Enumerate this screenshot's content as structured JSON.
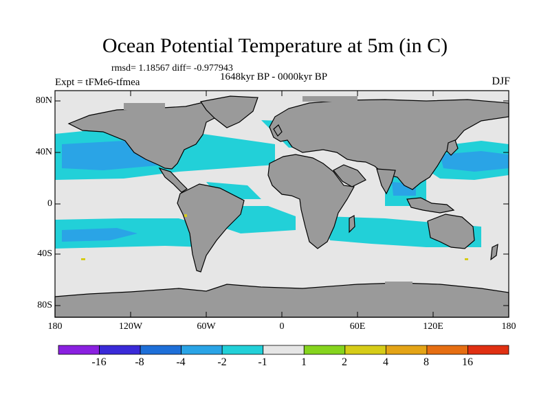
{
  "title": "Ocean Potential Temperature at 5m (in C)",
  "stats_line": "rmsd= 1.18567  diff= -0.977943",
  "experiment_line": "Expt = tFMe6-tfmea",
  "period_line": "1648kyr BP - 0000kyr BP",
  "season": "DJF",
  "y_axis": {
    "ticks": [
      "80N",
      "40N",
      "0",
      "40S",
      "80S"
    ]
  },
  "x_axis": {
    "ticks": [
      "180",
      "120W",
      "60W",
      "0",
      "60E",
      "120E",
      "180"
    ]
  },
  "colorbar": {
    "labels": [
      "-16",
      "-8",
      "-4",
      "-2",
      "-1",
      "1",
      "2",
      "4",
      "8",
      "16"
    ],
    "colors": [
      "#8a20e0",
      "#3a2ad8",
      "#1e6fd8",
      "#2aa4e6",
      "#22d0d8",
      "#e6e6e6",
      "#86d41e",
      "#d6cc18",
      "#e4a416",
      "#e66e12",
      "#e03012"
    ]
  },
  "colors": {
    "land": "#9a9a9a",
    "ocean_neutral": "#e6e6e6",
    "cool_light": "#22d0d8",
    "cool_mid": "#2aa4e6"
  }
}
